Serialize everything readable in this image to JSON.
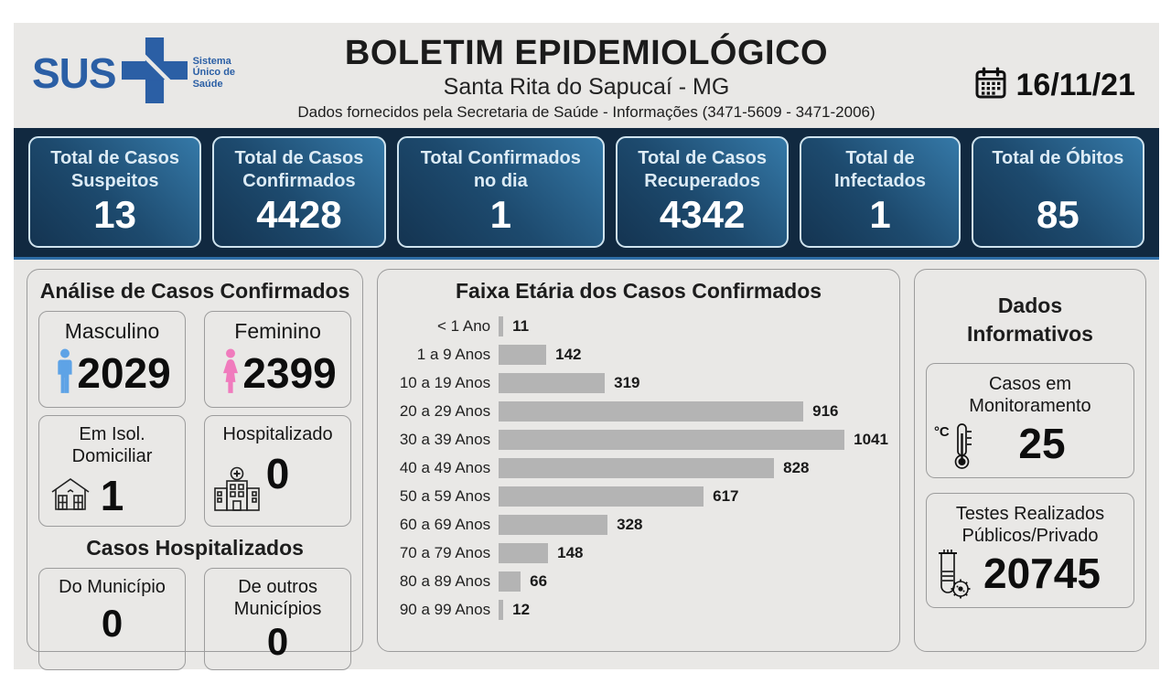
{
  "header": {
    "logo": {
      "text": "SUS",
      "tagline": "Sistema Único de Saúde"
    },
    "title": "BOLETIM EPIDEMIOLÓGICO",
    "subtitle": "Santa Rita do Sapucaí - MG",
    "info_line": "Dados fornecidos pela Secretaria de Saúde - Informações (3471-5609 - 3471-2006)",
    "date": "16/11/21"
  },
  "summary_cards": [
    {
      "label": "Total de Casos Suspeitos",
      "value": "13"
    },
    {
      "label": "Total de Casos Confirmados",
      "value": "4428"
    },
    {
      "label": "Total Confirmados no dia",
      "value": "1"
    },
    {
      "label": "Total de Casos Recuperados",
      "value": "4342"
    },
    {
      "label": "Total de Infectados",
      "value": "1"
    },
    {
      "label": "Total de Óbitos",
      "value": "85"
    }
  ],
  "analysis_panel": {
    "title": "Análise de Casos Confirmados",
    "masculino": {
      "label": "Masculino",
      "value": "2029"
    },
    "feminino": {
      "label": "Feminino",
      "value": "2399"
    },
    "isolamento": {
      "label": "Em Isol. Domiciliar",
      "value": "1"
    },
    "hospitalizado": {
      "label": "Hospitalizado",
      "value": "0"
    },
    "hospitalizados_title": "Casos Hospitalizados",
    "municipio": {
      "label": "Do Município",
      "value": "0"
    },
    "outros_municipios": {
      "label": "De outros Municípios",
      "value": "0"
    }
  },
  "chart_data": {
    "type": "bar",
    "orientation": "horizontal",
    "title": "Faixa Etária dos Casos Confirmados",
    "categories": [
      "< 1 Ano",
      "1 a 9 Anos",
      "10 a 19 Anos",
      "20 a 29 Anos",
      "30 a 39 Anos",
      "40 a 49 Anos",
      "50 a 59 Anos",
      "60 a 69 Anos",
      "70 a 79 Anos",
      "80 a 89 Anos",
      "90 a 99 Anos"
    ],
    "values": [
      11,
      142,
      319,
      916,
      1041,
      828,
      617,
      328,
      148,
      66,
      12
    ],
    "xlim": [
      0,
      1100
    ],
    "grid": false,
    "legend": false,
    "data_labels": true
  },
  "info_panel": {
    "title": "Dados Informativos",
    "monitoramento": {
      "label": "Casos em Monitoramento",
      "value": "25",
      "unit_badge": "°C"
    },
    "testes": {
      "label": "Testes Realizados Públicos/Privado",
      "value": "20745"
    }
  },
  "icons": {
    "sus_cross": "sus-blue-cross",
    "calendar": "calendar-grid",
    "male": "person-male-pictogram",
    "female": "person-female-pictogram",
    "house": "house-outline",
    "hospital": "hospital-building-outline",
    "thermometer": "thermometer-outline",
    "test_tube": "test-tube-with-virus-outline"
  },
  "colors": {
    "page_bg": "#e9e8e6",
    "band_bg": "#112940",
    "band_underline": "#2e6da6",
    "card_gradient_start": "#143451",
    "card_gradient_end": "#3579a8",
    "card_border": "#cfe3ee",
    "bar_color": "#b4b4b4",
    "sus_blue": "#2b5fa5",
    "male_icon": "#5ea3e6",
    "female_icon": "#f07bbd"
  }
}
